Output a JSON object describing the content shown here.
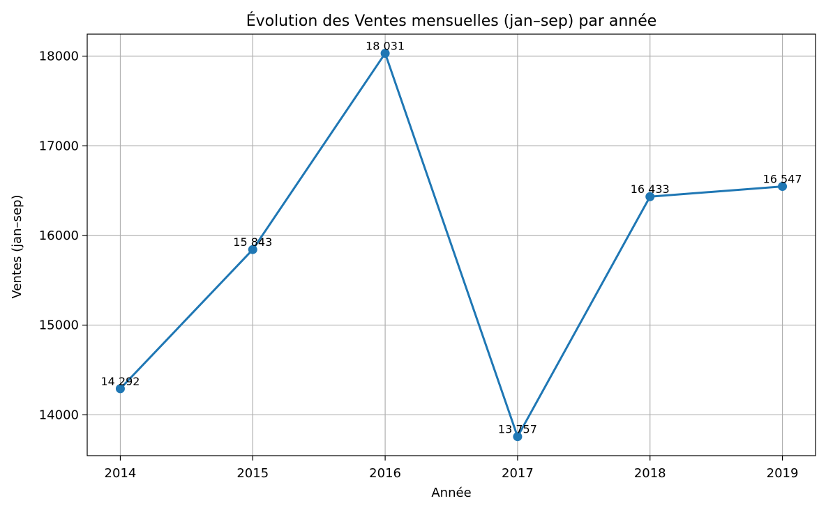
{
  "chart_data": {
    "type": "line",
    "title": "Évolution des Ventes mensuelles (jan–sep) par année",
    "xlabel": "Année",
    "ylabel": "Ventes (jan–sep)",
    "x": [
      2014,
      2015,
      2016,
      2017,
      2018,
      2019
    ],
    "x_tick_labels": [
      "2014",
      "2015",
      "2016",
      "2017",
      "2018",
      "2019"
    ],
    "xlim": [
      2013.75,
      2019.25
    ],
    "ylim": [
      13545,
      18245
    ],
    "y_ticks": [
      14000,
      15000,
      16000,
      17000,
      18000
    ],
    "y_tick_labels": [
      "14000",
      "15000",
      "16000",
      "17000",
      "18000"
    ],
    "series": [
      {
        "values": [
          14292,
          15843,
          18031,
          13757,
          16433,
          16547
        ],
        "data_labels": [
          "14 292",
          "15 843",
          "18 031",
          "13 757",
          "16 433",
          "16 547"
        ],
        "color": "#1f77b4",
        "marker": "circle"
      }
    ],
    "grid": true,
    "legend": false
  }
}
